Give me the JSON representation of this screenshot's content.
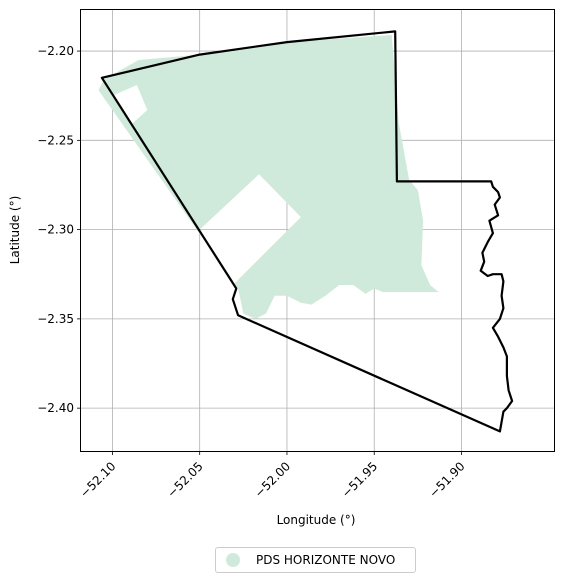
{
  "chart_data": {
    "type": "map",
    "xlabel": "Longitude (°)",
    "ylabel": "Latitude (°)",
    "xlim": [
      -52.118,
      -51.847
    ],
    "ylim": [
      -2.424,
      -2.177
    ],
    "xticks": [
      -52.1,
      -52.05,
      -52.0,
      -51.95,
      -51.9
    ],
    "xtick_labels": [
      "−52.10",
      "−52.05",
      "−52.00",
      "−51.95",
      "−51.90"
    ],
    "yticks": [
      -2.2,
      -2.25,
      -2.3,
      -2.35,
      -2.4
    ],
    "ytick_labels": [
      "−2.20",
      "−2.25",
      "−2.30",
      "−2.35",
      "−2.40"
    ],
    "grid": true,
    "legend_position": "bottom-center",
    "boundary_color": "#000000",
    "fill_color": "#cfeadb",
    "legend": [
      {
        "label": "PDS HORIZONTE NOVO",
        "color": "#cfeadb"
      }
    ],
    "fill_region": [
      [
        -52.105,
        -2.216
      ],
      [
        -52.085,
        -2.205
      ],
      [
        -52.05,
        -2.202
      ],
      [
        -52.0,
        -2.195
      ],
      [
        -51.94,
        -2.191
      ],
      [
        -51.936,
        -2.24
      ],
      [
        -51.93,
        -2.272
      ],
      [
        -51.925,
        -2.278
      ],
      [
        -51.922,
        -2.295
      ],
      [
        -51.923,
        -2.32
      ],
      [
        -51.918,
        -2.331
      ],
      [
        -51.913,
        -2.335
      ],
      [
        -51.945,
        -2.335
      ],
      [
        -51.95,
        -2.333
      ],
      [
        -51.955,
        -2.336
      ],
      [
        -51.962,
        -2.331
      ],
      [
        -51.97,
        -2.331
      ],
      [
        -51.978,
        -2.337
      ],
      [
        -51.986,
        -2.342
      ],
      [
        -51.992,
        -2.341
      ],
      [
        -52.0,
        -2.337
      ],
      [
        -52.007,
        -2.337
      ],
      [
        -52.012,
        -2.347
      ],
      [
        -52.018,
        -2.35
      ],
      [
        -52.025,
        -2.347
      ],
      [
        -52.028,
        -2.333
      ],
      [
        -52.03,
        -2.33
      ],
      [
        -52.108,
        -2.222
      ],
      [
        -52.105,
        -2.216
      ]
    ],
    "holes": [
      [
        [
          -52.1,
          -2.225
        ],
        [
          -52.086,
          -2.219
        ],
        [
          -52.08,
          -2.233
        ],
        [
          -52.089,
          -2.241
        ],
        [
          -52.1,
          -2.225
        ]
      ],
      [
        [
          -52.05,
          -2.3
        ],
        [
          -52.016,
          -2.269
        ],
        [
          -51.992,
          -2.293
        ],
        [
          -52.03,
          -2.33
        ],
        [
          -52.05,
          -2.3
        ]
      ]
    ],
    "boundary": [
      [
        -52.106,
        -2.215
      ],
      [
        -52.05,
        -2.202
      ],
      [
        -52.0,
        -2.195
      ],
      [
        -51.938,
        -2.189
      ],
      [
        -51.937,
        -2.273
      ],
      [
        -51.883,
        -2.273
      ],
      [
        -51.882,
        -2.276
      ],
      [
        -51.879,
        -2.279
      ],
      [
        -51.878,
        -2.282
      ],
      [
        -51.881,
        -2.286
      ],
      [
        -51.879,
        -2.292
      ],
      [
        -51.884,
        -2.295
      ],
      [
        -51.882,
        -2.302
      ],
      [
        -51.885,
        -2.307
      ],
      [
        -51.888,
        -2.313
      ],
      [
        -51.887,
        -2.318
      ],
      [
        -51.889,
        -2.323
      ],
      [
        -51.885,
        -2.326
      ],
      [
        -51.882,
        -2.325
      ],
      [
        -51.877,
        -2.325
      ],
      [
        -51.876,
        -2.329
      ],
      [
        -51.877,
        -2.337
      ],
      [
        -51.876,
        -2.344
      ],
      [
        -51.878,
        -2.35
      ],
      [
        -51.882,
        -2.355
      ],
      [
        -51.879,
        -2.36
      ],
      [
        -51.876,
        -2.366
      ],
      [
        -51.874,
        -2.371
      ],
      [
        -51.874,
        -2.382
      ],
      [
        -51.873,
        -2.39
      ],
      [
        -51.871,
        -2.396
      ],
      [
        -51.874,
        -2.4
      ],
      [
        -51.876,
        -2.402
      ],
      [
        -51.878,
        -2.413
      ],
      [
        -52.028,
        -2.348
      ],
      [
        -52.031,
        -2.339
      ],
      [
        -52.029,
        -2.333
      ],
      [
        -52.106,
        -2.215
      ]
    ]
  }
}
